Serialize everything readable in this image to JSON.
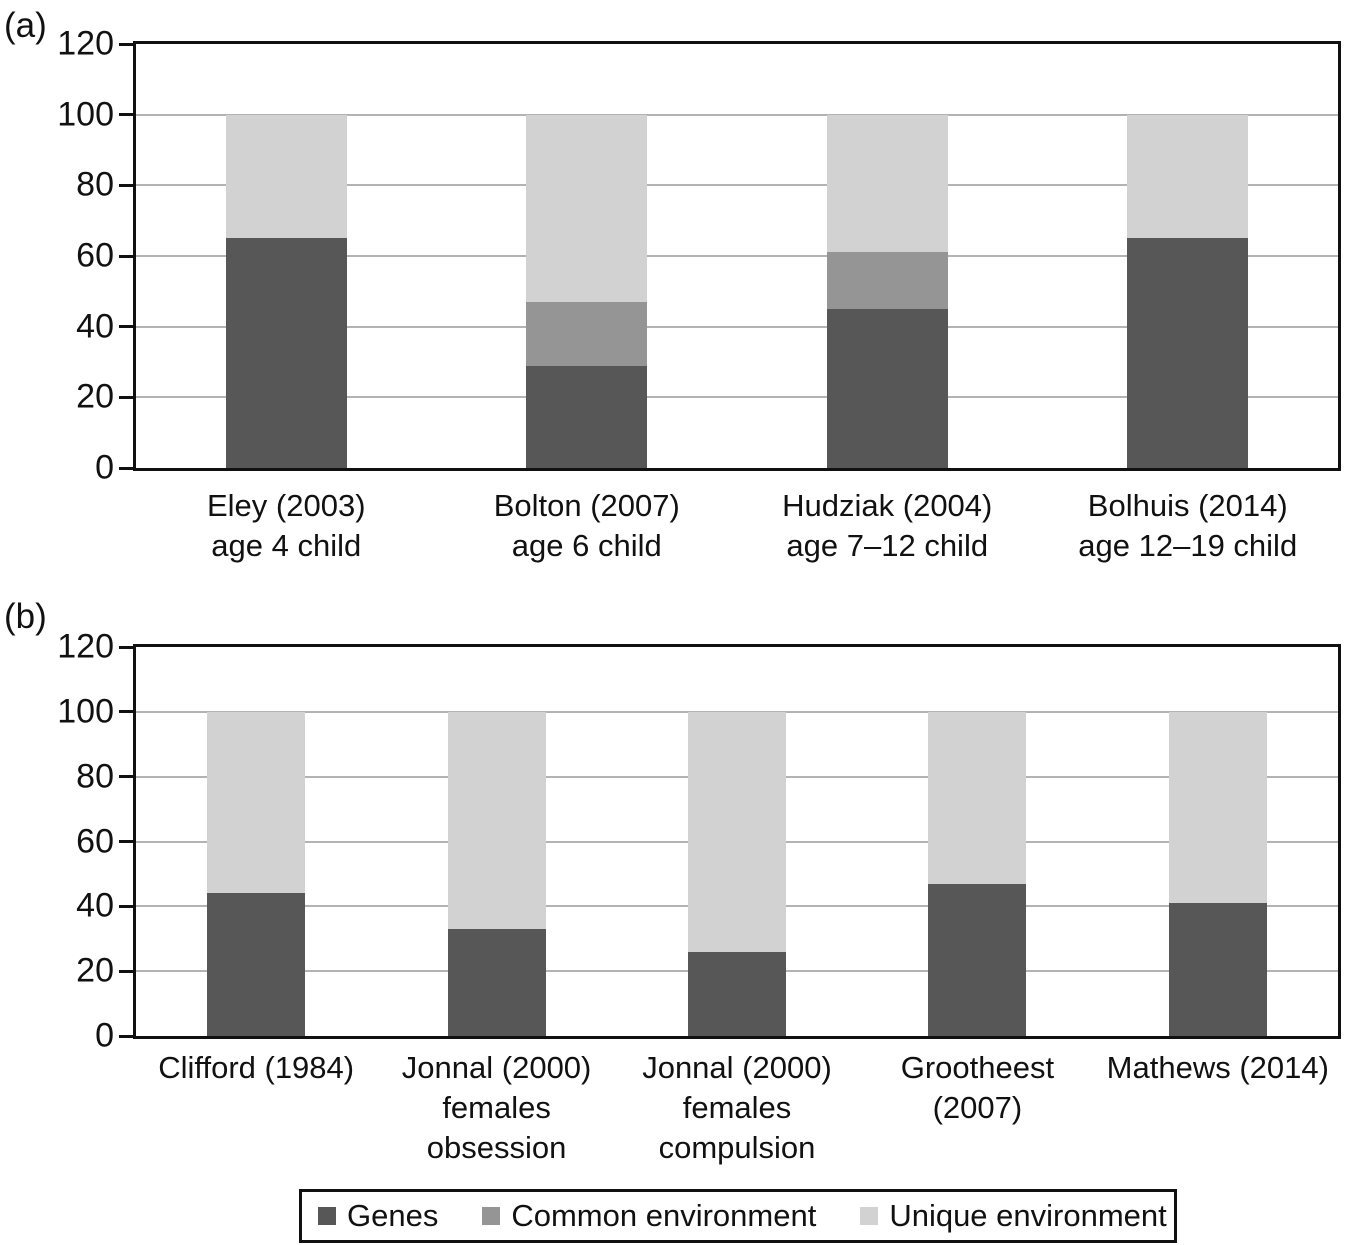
{
  "chart_data": [
    {
      "panel_label": "(a)",
      "type": "bar",
      "stacked": true,
      "categories": [
        [
          "Eley (2003)",
          "age 4 child"
        ],
        [
          "Bolton (2007)",
          "age 6 child"
        ],
        [
          "Hudziak (2004)",
          "age 7–12 child"
        ],
        [
          "Bolhuis (2014)",
          "age 12–19 child"
        ]
      ],
      "series": [
        {
          "name": "Genes",
          "color": "#575757",
          "values": [
            65,
            29,
            45,
            65
          ]
        },
        {
          "name": "Common environment",
          "color": "#959595",
          "values": [
            0,
            18,
            16,
            0
          ]
        },
        {
          "name": "Unique environment",
          "color": "#d2d2d2",
          "values": [
            35,
            53,
            39,
            35
          ]
        }
      ],
      "xlabel": "",
      "ylabel": "",
      "ylim": [
        0,
        120
      ],
      "yticks": [
        0,
        20,
        40,
        60,
        80,
        100,
        120
      ],
      "grid": true,
      "legend_position": "shared-bottom"
    },
    {
      "panel_label": "(b)",
      "type": "bar",
      "stacked": true,
      "categories": [
        [
          "Clifford (1984)"
        ],
        [
          "Jonnal (2000)",
          "females",
          "obsession"
        ],
        [
          "Jonnal (2000)",
          "females",
          "compulsion"
        ],
        [
          "Grootheest",
          "(2007)"
        ],
        [
          "Mathews (2014)"
        ]
      ],
      "series": [
        {
          "name": "Genes",
          "color": "#575757",
          "values": [
            44,
            33,
            26,
            47,
            41
          ]
        },
        {
          "name": "Common environment",
          "color": "#959595",
          "values": [
            0,
            0,
            0,
            0,
            0
          ]
        },
        {
          "name": "Unique environment",
          "color": "#d2d2d2",
          "values": [
            56,
            67,
            74,
            53,
            59
          ]
        }
      ],
      "xlabel": "",
      "ylabel": "",
      "ylim": [
        0,
        120
      ],
      "yticks": [
        0,
        20,
        40,
        60,
        80,
        100,
        120
      ],
      "grid": true,
      "legend_position": "shared-bottom"
    }
  ],
  "legend": {
    "items": [
      {
        "label": "Genes",
        "color": "#575757"
      },
      {
        "label": "Common environment",
        "color": "#959595"
      },
      {
        "label": "Unique environment",
        "color": "#d2d2d2"
      }
    ]
  },
  "colors": {
    "axis": "#111111",
    "gridline": "#b3b3b3",
    "background": "#ffffff"
  }
}
